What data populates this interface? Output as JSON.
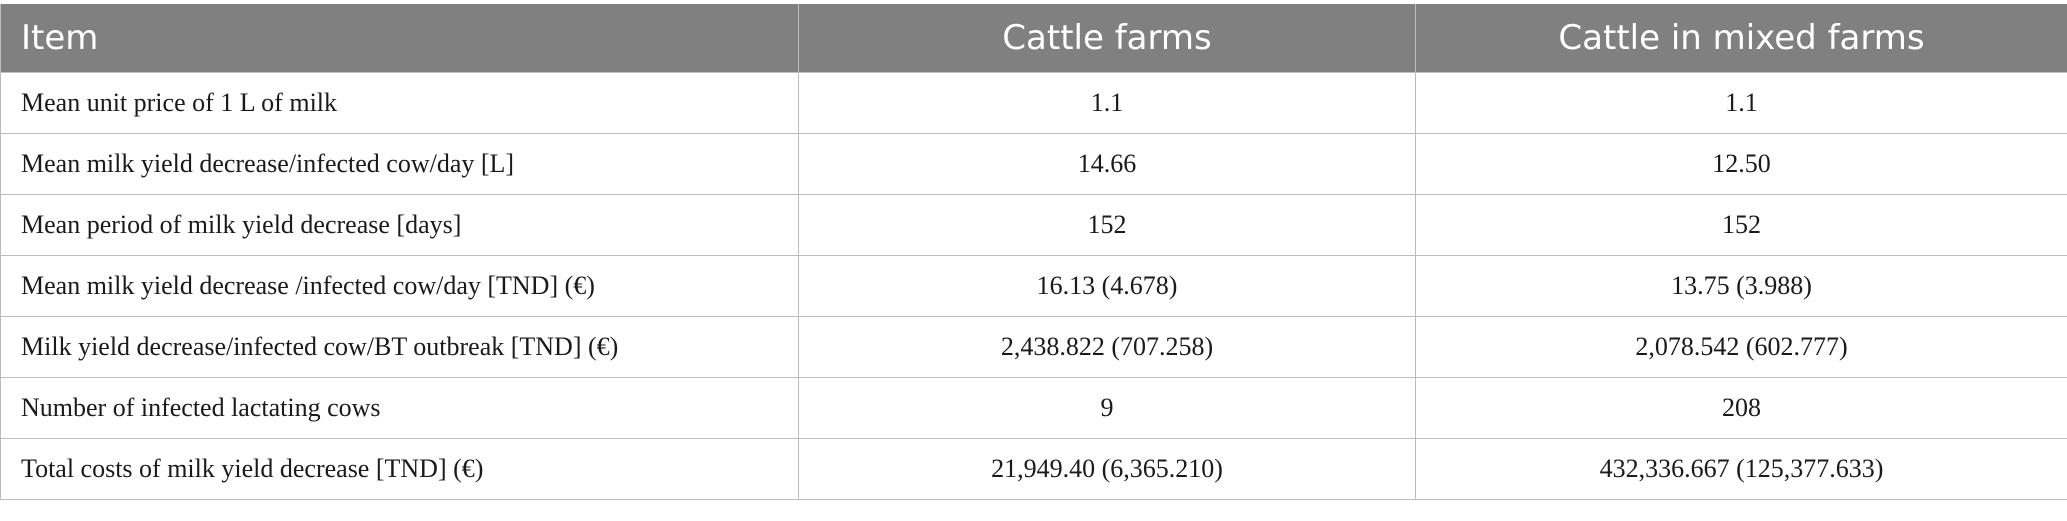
{
  "table": {
    "headers": [
      "Item",
      "Cattle farms",
      "Cattle in mixed farms"
    ],
    "rows": [
      [
        "Mean unit price of 1 L of milk",
        "1.1",
        "1.1"
      ],
      [
        "Mean milk yield decrease/infected cow/day [L]",
        "14.66",
        "12.50"
      ],
      [
        "Mean period of milk yield decrease [days]",
        "152",
        "152"
      ],
      [
        "Mean milk yield decrease /infected cow/day [TND] (€)",
        "16.13 (4.678)",
        "13.75 (3.988)"
      ],
      [
        "Milk yield decrease/infected cow/BT outbreak [TND] (€)",
        "2,438.822 (707.258)",
        "2,078.542 (602.777)"
      ],
      [
        "Number of infected lactating cows",
        "9",
        "208"
      ],
      [
        "Total costs of milk yield decrease [TND] (€)",
        "21,949.40 (6,365.210)",
        "432,336.667 (125,377.633)"
      ]
    ]
  },
  "colors": {
    "header_background": "#7f807f",
    "header_text": "#ffffff",
    "border": "#bcbcbc"
  }
}
